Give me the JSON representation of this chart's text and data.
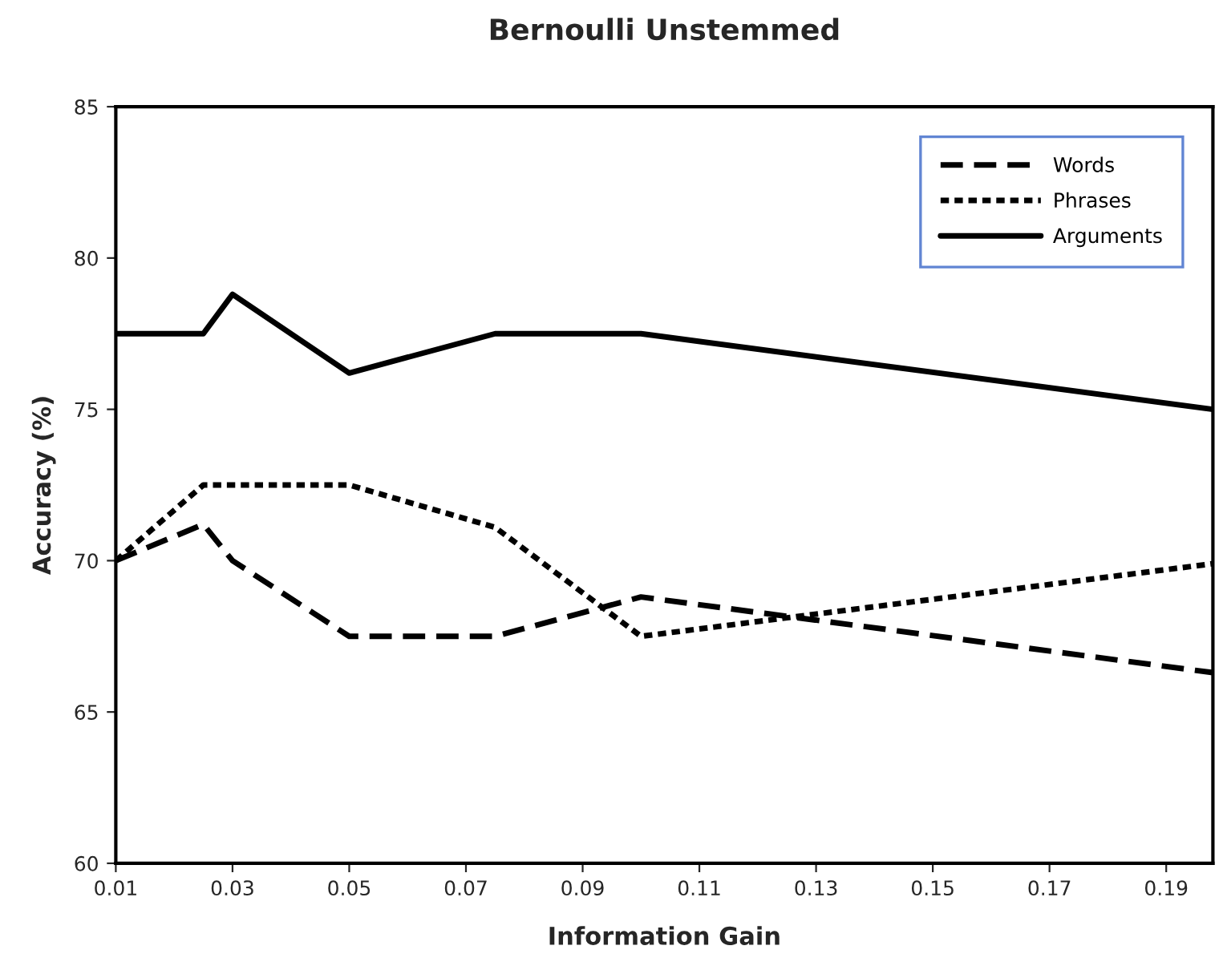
{
  "chart_data": {
    "type": "line",
    "title": "Bernoulli Unstemmed",
    "xlabel": "Information Gain",
    "ylabel": "Accuracy (%)",
    "xlim": [
      0.01,
      0.198
    ],
    "xticks": [
      {
        "value": 0.01,
        "label": "0.01"
      },
      {
        "value": 0.03,
        "label": "0.03"
      },
      {
        "value": 0.05,
        "label": "0.05"
      },
      {
        "value": 0.07,
        "label": "0.07"
      },
      {
        "value": 0.09,
        "label": "0.09"
      },
      {
        "value": 0.11,
        "label": "0.11"
      },
      {
        "value": 0.13,
        "label": "0.13"
      },
      {
        "value": 0.15,
        "label": "0.15"
      },
      {
        "value": 0.17,
        "label": "0.17"
      },
      {
        "value": 0.19,
        "label": "0.19"
      }
    ],
    "ylim": [
      60,
      85
    ],
    "yticks": [
      60,
      65,
      70,
      75,
      80,
      85
    ],
    "grid": false,
    "legend": "top right",
    "marker": "none",
    "series": [
      {
        "name": "Words",
        "color": "#000000",
        "line_style": "dashed",
        "x": [
          0.01,
          0.025,
          0.03,
          0.05,
          0.075,
          0.1,
          0.198
        ],
        "values": [
          70,
          71.2,
          70,
          67.5,
          67.5,
          68.8,
          66.3
        ]
      },
      {
        "name": "Phrases",
        "color": "#000000",
        "line_style": "dotted",
        "x": [
          0.01,
          0.025,
          0.05,
          0.075,
          0.1,
          0.198
        ],
        "values": [
          70,
          72.5,
          72.5,
          71.1,
          67.5,
          69.9
        ]
      },
      {
        "name": "Arguments",
        "color": "#000000",
        "line_style": "solid",
        "x": [
          0.01,
          0.025,
          0.03,
          0.05,
          0.075,
          0.1,
          0.198
        ],
        "values": [
          77.5,
          77.5,
          78.8,
          76.2,
          77.5,
          77.5,
          75.0
        ]
      }
    ]
  }
}
